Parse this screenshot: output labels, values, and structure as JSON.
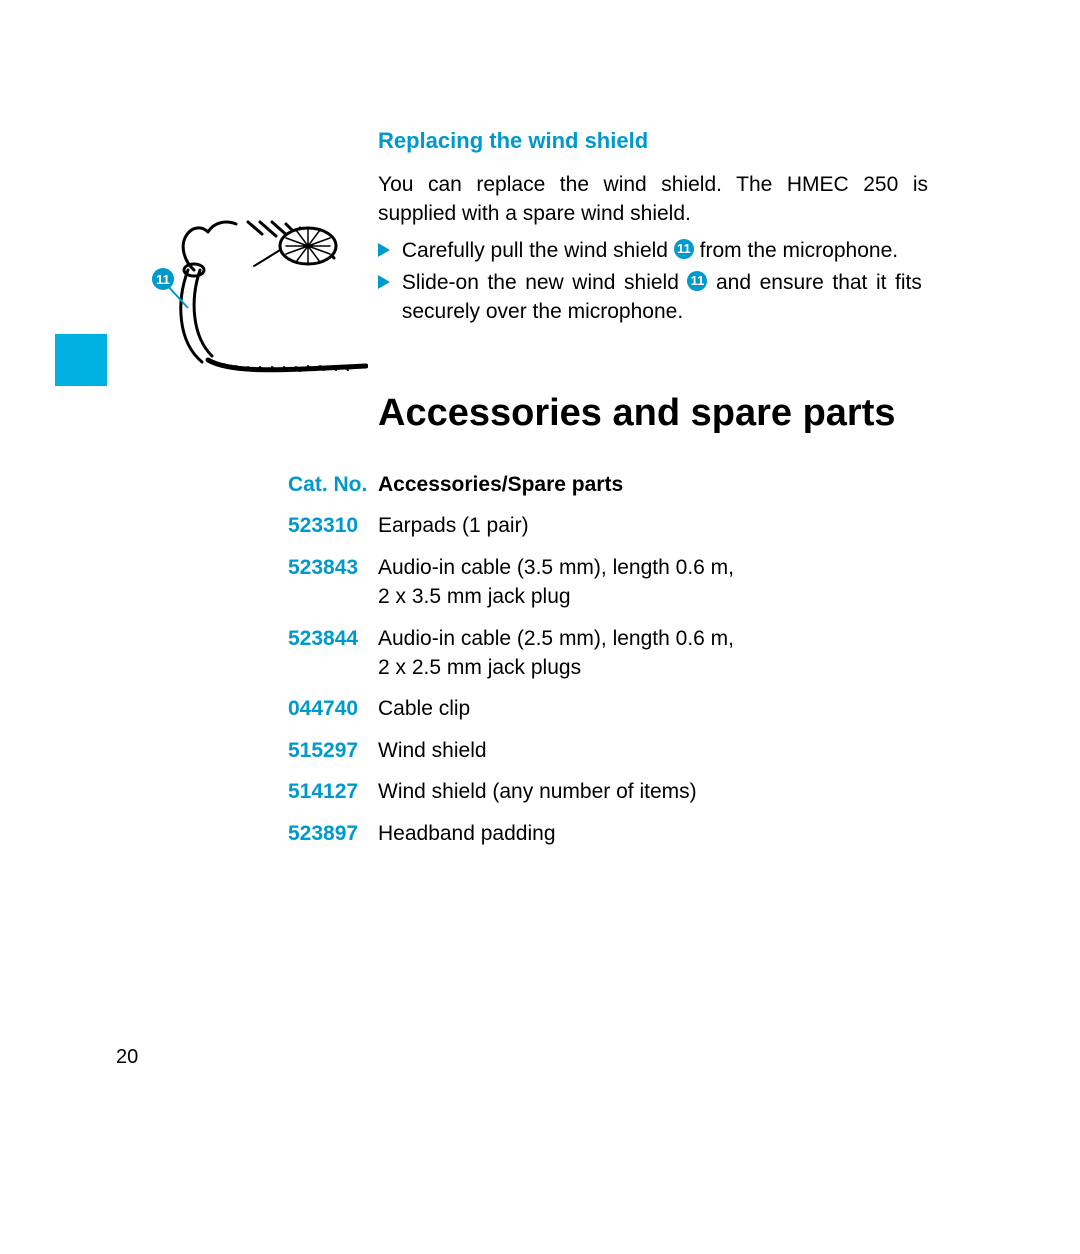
{
  "colors": {
    "accent": "#0099cc",
    "tab": "#00b0e0",
    "text": "#000000",
    "background": "#ffffff"
  },
  "subheading": "Replacing the wind shield",
  "intro": "You can replace the wind shield. The HMEC 250 is supplied with a spare wind shield.",
  "callout_label": "11",
  "steps": [
    {
      "pre": "Carefully pull the wind shield ",
      "post": " from the microphone."
    },
    {
      "pre": "Slide-on the new wind shield ",
      "post": " and ensure that it fits securely over the microphone."
    }
  ],
  "main_heading": "Accessories and spare parts",
  "table": {
    "header": {
      "catno": "Cat. No.",
      "desc": "Accessories/Spare parts"
    },
    "rows": [
      {
        "catno": "523310",
        "desc": "Earpads (1 pair)"
      },
      {
        "catno": "523843",
        "desc": "Audio-in cable (3.5 mm), length 0.6 m,\n2 x 3.5 mm jack plug"
      },
      {
        "catno": "523844",
        "desc": "Audio-in cable (2.5 mm), length 0.6 m,\n2 x 2.5 mm jack plugs"
      },
      {
        "catno": "044740",
        "desc": "Cable clip"
      },
      {
        "catno": "515297",
        "desc": "Wind shield"
      },
      {
        "catno": "514127",
        "desc": "Wind shield (any number of items)"
      },
      {
        "catno": "523897",
        "desc": "Headband padding"
      }
    ]
  },
  "page_number": "20"
}
